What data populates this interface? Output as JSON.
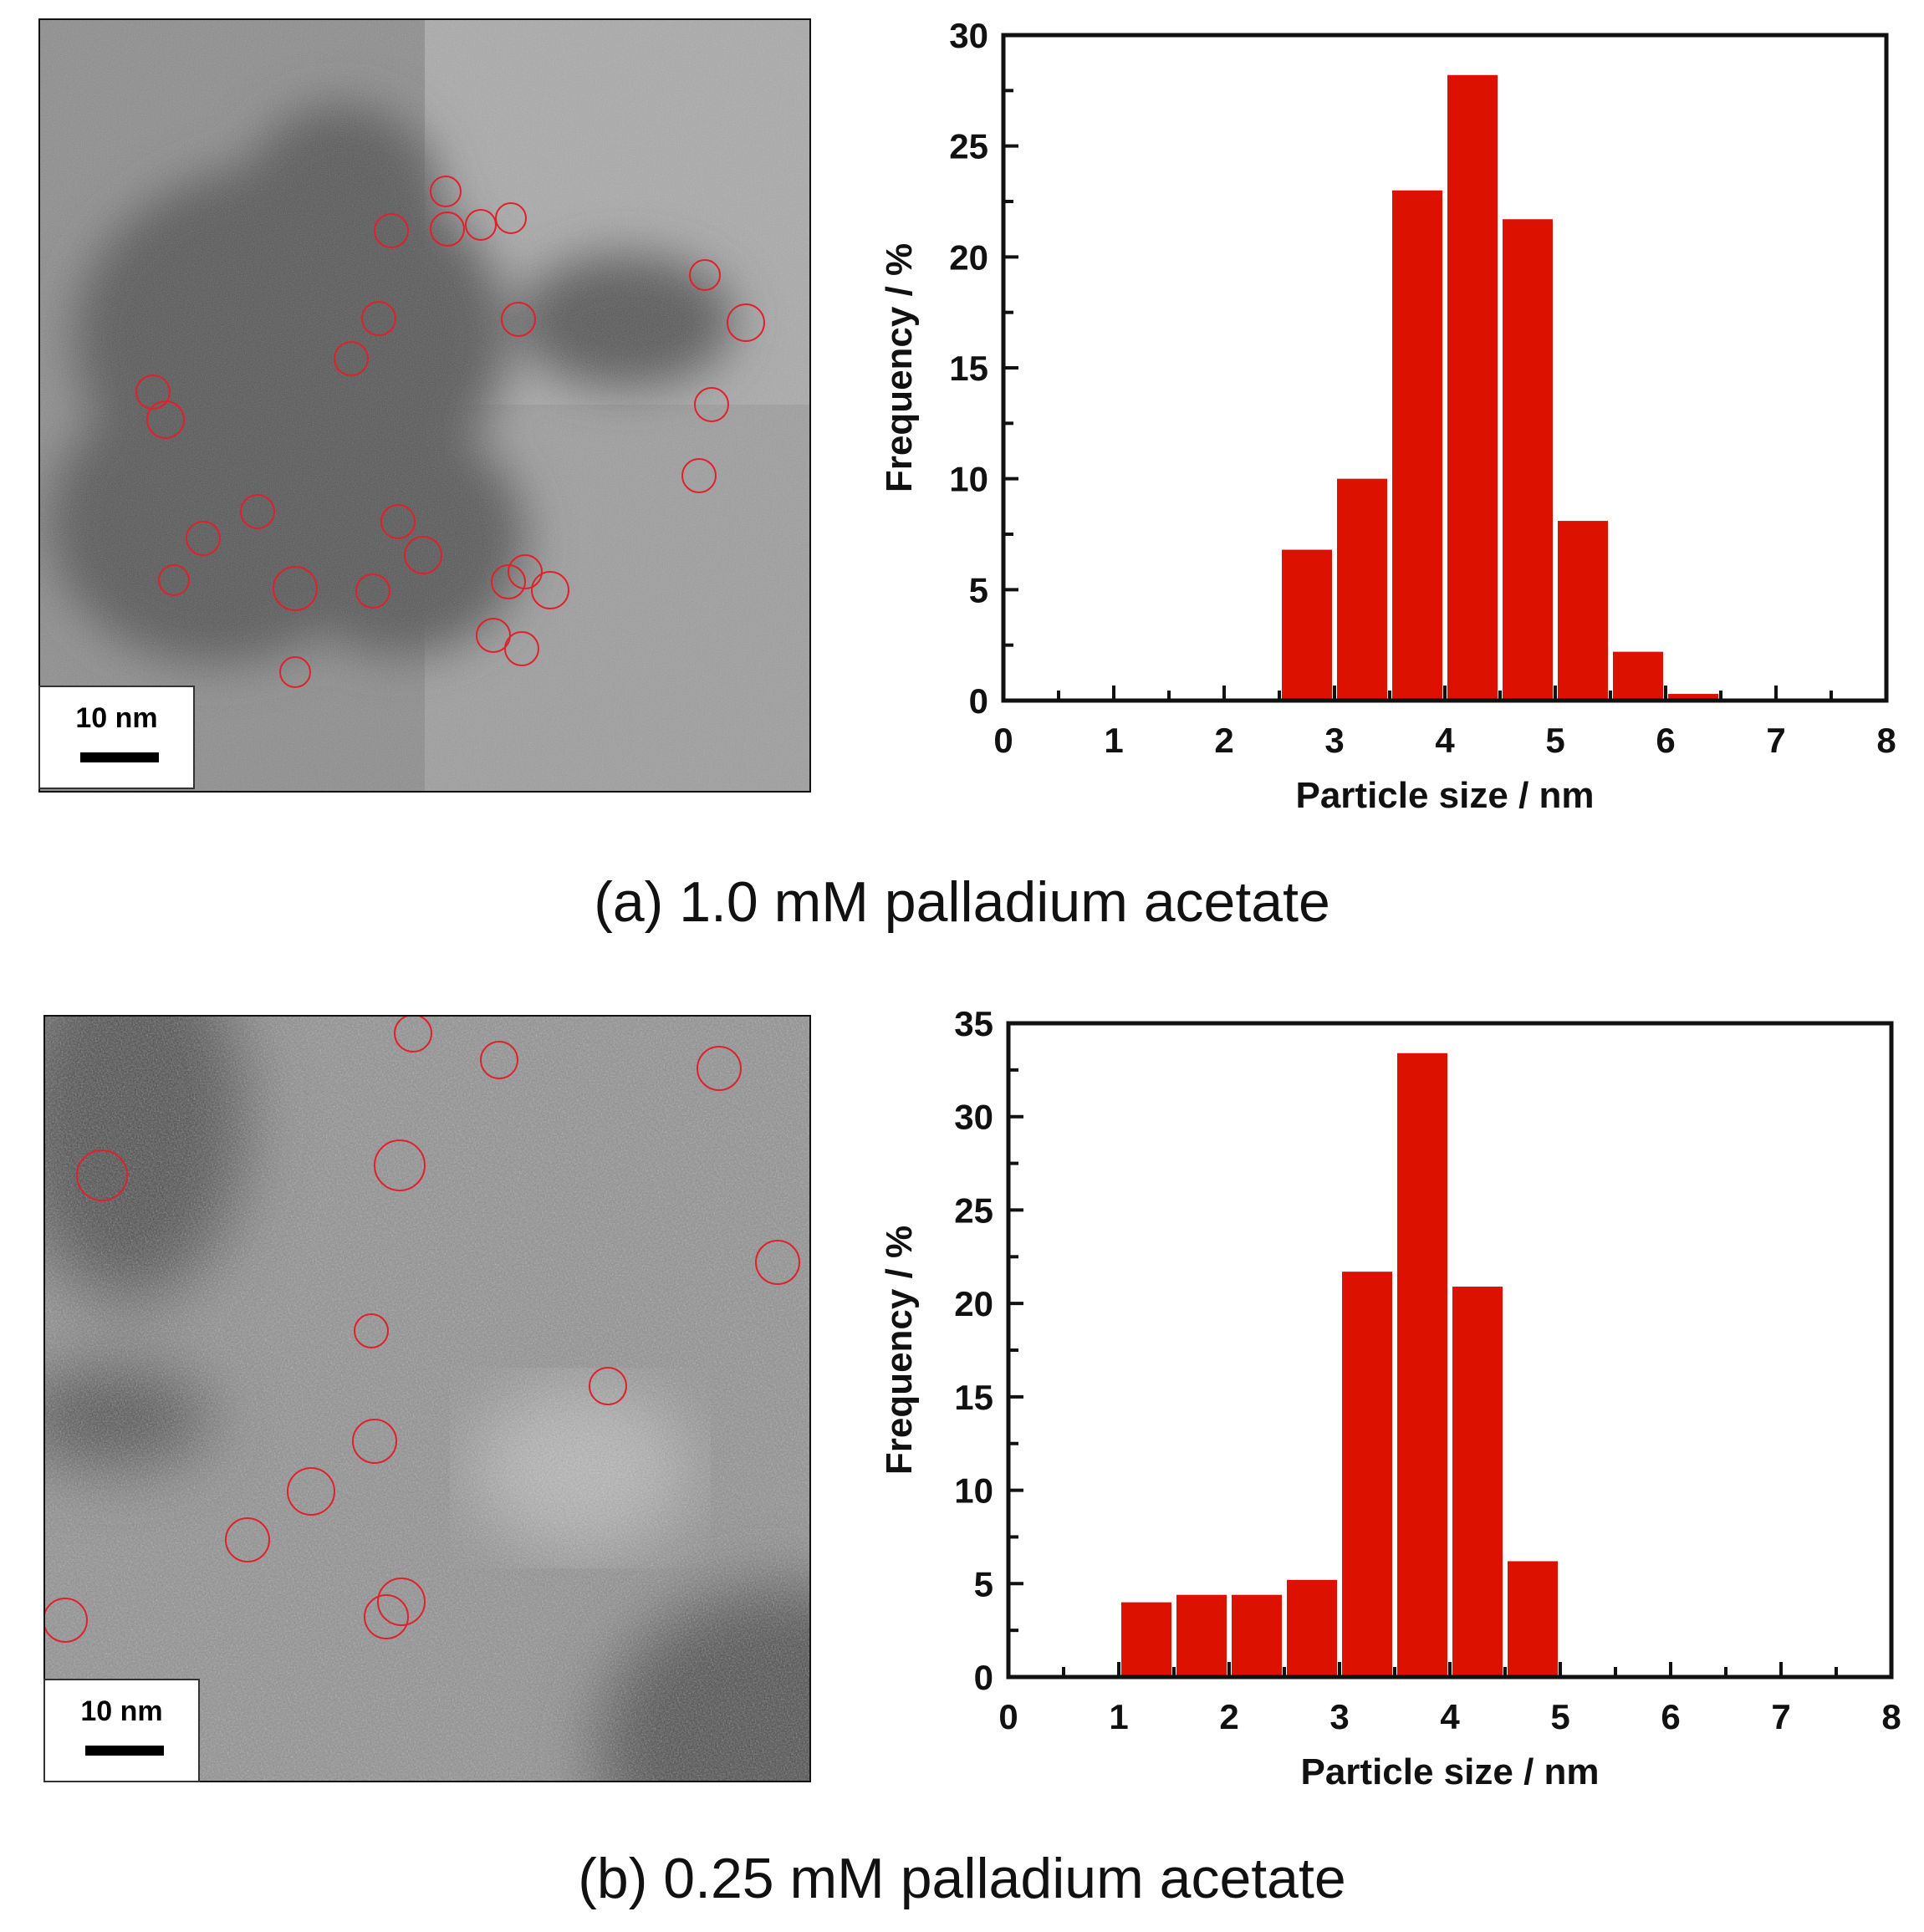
{
  "panels": [
    {
      "caption": "(a) 1.0 mM palladium acetate",
      "scalebar": "10 nm",
      "micrograph_icon": "tem-micrograph-with-circled-nanoparticles"
    },
    {
      "caption": "(b) 0.25 mM palladium acetate",
      "scalebar": "10 nm",
      "micrograph_icon": "tem-micrograph-with-circled-nanoparticles"
    }
  ],
  "chart_data": [
    {
      "type": "bar",
      "xlabel": "Particle size / nm",
      "ylabel": "Frequency / %",
      "xlim": [
        0,
        8
      ],
      "ylim": [
        0,
        30
      ],
      "xticks": [
        0,
        1,
        2,
        3,
        4,
        5,
        6,
        7,
        8
      ],
      "yticks": [
        0,
        5,
        10,
        15,
        20,
        25,
        30
      ],
      "bin_width": 0.5,
      "x": [
        2.75,
        3.25,
        3.75,
        4.25,
        4.75,
        5.25,
        5.75,
        6.25
      ],
      "values": [
        6.8,
        10.0,
        23.0,
        28.2,
        21.7,
        8.1,
        2.2,
        0.3
      ],
      "bar_color": "#dd1100",
      "grid": false
    },
    {
      "type": "bar",
      "xlabel": "Particle size / nm",
      "ylabel": "Frequency / %",
      "xlim": [
        0,
        8
      ],
      "ylim": [
        0,
        35
      ],
      "xticks": [
        0,
        1,
        2,
        3,
        4,
        5,
        6,
        7,
        8
      ],
      "yticks": [
        0,
        5,
        10,
        15,
        20,
        25,
        30,
        35
      ],
      "bin_width": 0.5,
      "x": [
        1.25,
        1.75,
        2.25,
        2.75,
        3.25,
        3.75,
        4.25,
        4.75
      ],
      "values": [
        4.0,
        4.4,
        4.4,
        5.2,
        21.7,
        33.4,
        20.9,
        6.2
      ],
      "bar_color": "#dd1100",
      "grid": false
    }
  ]
}
